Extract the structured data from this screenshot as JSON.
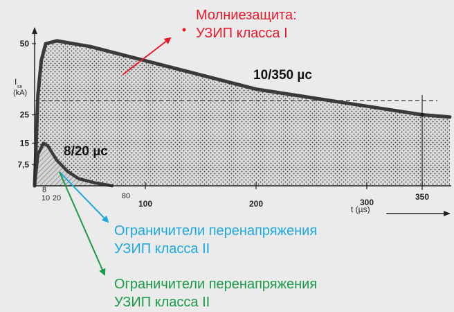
{
  "chart_data": {
    "type": "area",
    "ylabel_symbol": "I",
    "ylabel_sub": "sn",
    "ylabel_unit": "(kA)",
    "xlabel": "t (µs)",
    "y_ticks": [
      {
        "value": 50,
        "label": "50"
      },
      {
        "value": 25,
        "label": "25"
      },
      {
        "value": 15,
        "label": "15"
      },
      {
        "value": 7.5,
        "label": "7,5"
      }
    ],
    "x_ticks_small": [
      {
        "value": 8,
        "label": "8"
      },
      {
        "value": 10,
        "label": "10"
      },
      {
        "value": 20,
        "label": "20"
      },
      {
        "value": 80,
        "label": "80"
      }
    ],
    "x_ticks_large": [
      {
        "value": 100,
        "label": "100"
      },
      {
        "value": 200,
        "label": "200"
      },
      {
        "value": 300,
        "label": "300"
      },
      {
        "value": 350,
        "label": "350"
      }
    ],
    "series": [
      {
        "name": "10/350 µс",
        "points": [
          [
            0,
            0
          ],
          [
            3,
            32
          ],
          [
            6,
            44
          ],
          [
            10,
            50
          ],
          [
            20,
            51
          ],
          [
            50,
            49
          ],
          [
            100,
            44
          ],
          [
            150,
            39
          ],
          [
            200,
            34
          ],
          [
            250,
            31
          ],
          [
            300,
            28
          ],
          [
            350,
            25
          ],
          [
            375,
            24.2
          ]
        ]
      },
      {
        "name": "8/20 µс",
        "points": [
          [
            0,
            0
          ],
          [
            3,
            11
          ],
          [
            8,
            15
          ],
          [
            12,
            14
          ],
          [
            20,
            9
          ],
          [
            30,
            5
          ],
          [
            40,
            2.5
          ],
          [
            55,
            1
          ],
          [
            70,
            0
          ]
        ]
      }
    ],
    "reference_line": {
      "value": 30,
      "style": "dashed"
    },
    "marker": {
      "x": 350,
      "y": 25
    }
  },
  "annotations": {
    "lightning": {
      "line1": "Молниезащита:",
      "line2": "УЗИП класса I",
      "color": "#e8192c"
    },
    "blue": {
      "line1": "Ограничители перенапряжения",
      "line2": "УЗИП класса II",
      "color": "#1ca8df"
    },
    "green": {
      "line1": "Ограничители перенапряжения",
      "line2": "УЗИП класса II",
      "color": "#1a9a46"
    }
  },
  "colors": {
    "curve": "#3a3a3a",
    "axis": "#222222",
    "background": "#ebebeb"
  }
}
